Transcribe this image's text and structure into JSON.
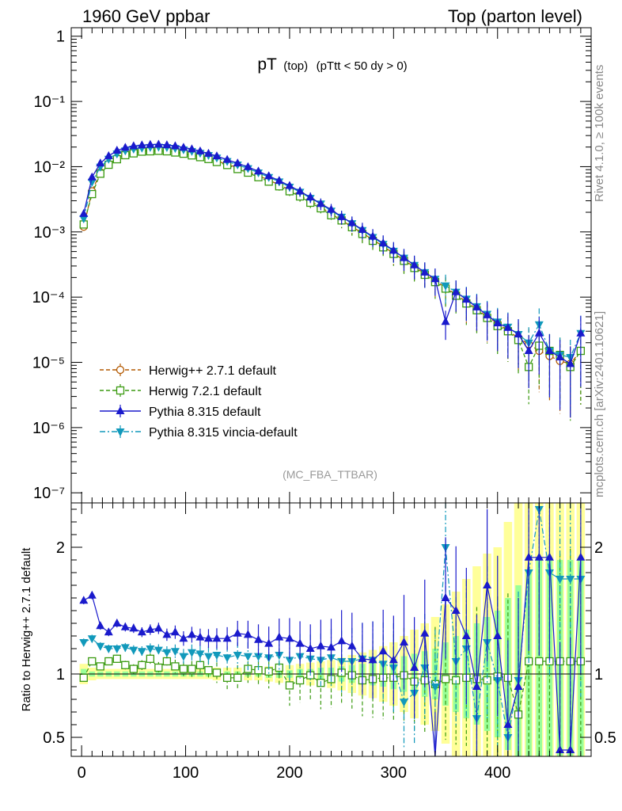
{
  "header": {
    "left": "1960 GeV ppbar",
    "right": "Top (parton level)"
  },
  "side_labels": {
    "rivet": "Rivet 4.1.0, ≥ 100k events",
    "mcplots": "mcplots.cern.ch [arXiv:2401.10621]"
  },
  "chart_data": [
    {
      "type": "line",
      "title_main": "pT",
      "title_sub": "(top)",
      "title_cut": "(pTtt < 50 dy > 0)",
      "analysis_tag": "(MC_FBA_TTBAR)",
      "xlabel": "",
      "ylabel": "",
      "yscale": "log",
      "xlim": [
        -10,
        490
      ],
      "ylim": [
        7e-08,
        1.35
      ],
      "y_tick_labels": [
        "1",
        "10⁻¹",
        "10⁻²",
        "10⁻³",
        "10⁻⁴",
        "10⁻⁵",
        "10⁻⁶",
        "10⁻⁷"
      ],
      "y_tick_values": [
        1,
        0.1,
        0.01,
        0.001,
        0.0001,
        1e-05,
        1e-06,
        1e-07
      ],
      "legend": [
        {
          "label": "Herwig++ 2.7.1 default",
          "color": "#b35900",
          "marker": "open-circle",
          "dash": "dashed"
        },
        {
          "label": "Herwig 7.2.1 default",
          "color": "#3a9a10",
          "marker": "open-square",
          "dash": "dashed"
        },
        {
          "label": "Pythia 8.315 default",
          "color": "#1a1acc",
          "marker": "filled-triangle-up",
          "dash": "solid"
        },
        {
          "label": "Pythia 8.315 vincia-default",
          "color": "#1199bb",
          "marker": "filled-triangle-down",
          "dash": "dashdot"
        }
      ],
      "x": [
        2,
        10,
        18,
        26,
        34,
        42,
        50,
        58,
        66,
        74,
        82,
        90,
        98,
        106,
        114,
        122,
        130,
        140,
        150,
        160,
        170,
        180,
        190,
        200,
        210,
        220,
        230,
        240,
        250,
        260,
        270,
        280,
        290,
        300,
        310,
        320,
        330,
        340,
        350,
        360,
        370,
        380,
        390,
        400,
        410,
        420,
        430,
        440,
        450,
        460,
        470,
        480
      ],
      "series": [
        {
          "name": "Herwig++ 2.7.1 default",
          "values": [
            0.0012,
            0.0042,
            0.0082,
            0.011,
            0.0135,
            0.0152,
            0.0163,
            0.0172,
            0.0176,
            0.0177,
            0.0175,
            0.0169,
            0.0162,
            0.0153,
            0.0143,
            0.0133,
            0.0122,
            0.0109,
            0.0096,
            0.0084,
            0.0073,
            0.0062,
            0.0053,
            0.0044,
            0.0036,
            0.003,
            0.0024,
            0.0019,
            0.0015,
            0.0012,
            0.00096,
            0.00076,
            0.0006,
            0.00047,
            0.00037,
            0.00029,
            0.00023,
            0.00018,
            0.00014,
            0.00011,
            8.5e-05,
            6.5e-05,
            5e-05,
            4e-05,
            3e-05,
            2.4e-05,
            1.9e-05,
            1.5e-05,
            1.25e-05,
            1.05e-05,
            9.5e-06,
            1.5e-05
          ]
        },
        {
          "name": "Herwig 7.2.1 default",
          "values": [
            0.0013,
            0.0038,
            0.0078,
            0.0107,
            0.013,
            0.015,
            0.016,
            0.017,
            0.0172,
            0.0175,
            0.0172,
            0.0165,
            0.0158,
            0.0149,
            0.014,
            0.0131,
            0.0118,
            0.0106,
            0.0092,
            0.0081,
            0.0069,
            0.0059,
            0.005,
            0.0042,
            0.0035,
            0.0028,
            0.0023,
            0.0018,
            0.0015,
            0.00118,
            0.00093,
            0.00073,
            0.00058,
            0.00046,
            0.00036,
            0.00028,
            0.00022,
            0.00017,
            0.000135,
            0.000105,
            8e-05,
            6.3e-05,
            4.8e-05,
            3.6e-05,
            3e-05,
            2.2e-05,
            8.5e-06,
            1.8e-05,
            1.5e-05,
            1.3e-05,
            8.5e-06,
            1.5e-05
          ]
        },
        {
          "name": "Pythia 8.315 default",
          "values": [
            0.0019,
            0.0069,
            0.0113,
            0.0146,
            0.0177,
            0.0196,
            0.0207,
            0.0214,
            0.0218,
            0.0219,
            0.0215,
            0.0207,
            0.0197,
            0.0186,
            0.0173,
            0.0159,
            0.0145,
            0.0128,
            0.0113,
            0.0099,
            0.0085,
            0.0072,
            0.0061,
            0.0051,
            0.0042,
            0.0034,
            0.0027,
            0.0022,
            0.0017,
            0.00137,
            0.00108,
            0.00085,
            0.00067,
            0.00052,
            0.0004,
            0.00031,
            0.00024,
            0.00019,
            4.2e-05,
            0.00012,
            9.2e-05,
            7e-05,
            5.3e-05,
            4e-05,
            3.4e-05,
            2.7e-05,
            1.5e-05,
            2.8e-05,
            1.5e-05,
            1.2e-05,
            9.5e-06,
            2.8e-05
          ]
        },
        {
          "name": "Pythia 8.315 vincia-default",
          "values": [
            0.0016,
            0.0058,
            0.0099,
            0.0131,
            0.0158,
            0.0176,
            0.0187,
            0.0194,
            0.0199,
            0.0201,
            0.0198,
            0.0192,
            0.0183,
            0.0173,
            0.0162,
            0.015,
            0.0137,
            0.0121,
            0.0107,
            0.0094,
            0.0081,
            0.0069,
            0.0059,
            0.0049,
            0.0041,
            0.0033,
            0.0027,
            0.0021,
            0.0017,
            0.00135,
            0.00106,
            0.00083,
            0.00065,
            0.00051,
            0.0004,
            0.00031,
            0.00024,
            0.00019,
            0.00015,
            0.00012,
            9.4e-05,
            7.2e-05,
            5.5e-05,
            4.2e-05,
            3.5e-05,
            2.7e-05,
            2e-05,
            3.8e-05,
            1.5e-05,
            1.3e-05,
            1.2e-05,
            2.8e-05
          ]
        }
      ]
    },
    {
      "type": "line",
      "ylabel": "Ratio to Herwig++ 2.7.1 default",
      "xlabel": "",
      "xlim": [
        -10,
        490
      ],
      "ylim": [
        0.35,
        2.35
      ],
      "x_tick_labels": [
        "0",
        "100",
        "200",
        "300",
        "400"
      ],
      "x_tick_values": [
        0,
        100,
        200,
        300,
        400
      ],
      "y_tick_labels": [
        "0.5",
        "1",
        "2"
      ],
      "y_tick_values": [
        0.5,
        1,
        2
      ],
      "x": [
        2,
        10,
        18,
        26,
        34,
        42,
        50,
        58,
        66,
        74,
        82,
        90,
        98,
        106,
        114,
        122,
        130,
        140,
        150,
        160,
        170,
        180,
        190,
        200,
        210,
        220,
        230,
        240,
        250,
        260,
        270,
        280,
        290,
        300,
        310,
        320,
        330,
        340,
        350,
        360,
        370,
        380,
        390,
        400,
        410,
        420,
        430,
        440,
        450,
        460,
        470,
        480
      ],
      "band_inner": [
        0.04,
        0.02,
        0.02,
        0.02,
        0.02,
        0.02,
        0.02,
        0.02,
        0.02,
        0.02,
        0.02,
        0.02,
        0.02,
        0.02,
        0.02,
        0.02,
        0.02,
        0.02,
        0.02,
        0.02,
        0.02,
        0.03,
        0.03,
        0.03,
        0.04,
        0.04,
        0.05,
        0.05,
        0.06,
        0.07,
        0.08,
        0.09,
        0.1,
        0.12,
        0.14,
        0.16,
        0.18,
        0.2,
        0.25,
        0.3,
        0.35,
        0.4,
        0.45,
        0.5,
        0.6,
        0.7,
        0.8,
        0.9,
        0.9,
        0.9,
        0.9,
        0.9
      ],
      "band_outer": [
        0.08,
        0.05,
        0.04,
        0.04,
        0.04,
        0.04,
        0.04,
        0.04,
        0.04,
        0.04,
        0.04,
        0.04,
        0.04,
        0.04,
        0.04,
        0.04,
        0.05,
        0.05,
        0.05,
        0.05,
        0.05,
        0.06,
        0.07,
        0.07,
        0.08,
        0.09,
        0.1,
        0.11,
        0.13,
        0.15,
        0.17,
        0.19,
        0.22,
        0.25,
        0.3,
        0.35,
        0.4,
        0.45,
        0.55,
        0.65,
        0.75,
        0.85,
        0.95,
        1.0,
        1.2,
        1.4,
        1.5,
        1.5,
        1.5,
        1.5,
        1.5,
        1.5
      ],
      "series": [
        {
          "name": "Herwig 7.2.1 default",
          "values": [
            0.97,
            1.1,
            1.06,
            1.1,
            1.12,
            1.07,
            1.04,
            1.07,
            1.12,
            1.05,
            1.1,
            1.06,
            1.04,
            1.04,
            1.07,
            1.03,
            1.01,
            0.97,
            0.97,
            1.04,
            1.03,
            1.02,
            1.05,
            0.91,
            0.95,
            0.99,
            0.93,
            0.96,
            1.01,
            0.99,
            0.95,
            0.96,
            0.97,
            0.97,
            0.99,
            0.94,
            0.95,
            0.92,
            0.96,
            0.95,
            0.97,
            0.96,
            0.95,
            0.98,
            0.97,
            0.68,
            1.1,
            1.1,
            1.1,
            1.1,
            1.1,
            1.1
          ]
        },
        {
          "name": "Pythia 8.315 default",
          "values": [
            1.58,
            1.62,
            1.38,
            1.33,
            1.4,
            1.37,
            1.36,
            1.33,
            1.35,
            1.36,
            1.31,
            1.33,
            1.28,
            1.31,
            1.29,
            1.28,
            1.28,
            1.28,
            1.32,
            1.31,
            1.27,
            1.24,
            1.29,
            1.28,
            1.24,
            1.2,
            1.22,
            1.21,
            1.26,
            1.22,
            1.12,
            1.11,
            1.18,
            1.11,
            1.25,
            1.05,
            1.32,
            0.25,
            1.6,
            1.5,
            1.3,
            0.9,
            1.7,
            1.3,
            0.6,
            0.9,
            1.92,
            1.92,
            1.92,
            0.4,
            0.4,
            1.92
          ]
        },
        {
          "name": "Pythia 8.315 vincia-default",
          "values": [
            1.25,
            1.28,
            1.22,
            1.2,
            1.2,
            1.21,
            1.19,
            1.18,
            1.2,
            1.19,
            1.17,
            1.18,
            1.14,
            1.17,
            1.16,
            1.14,
            1.15,
            1.13,
            1.15,
            1.14,
            1.14,
            1.13,
            1.15,
            1.11,
            1.14,
            1.12,
            1.11,
            1.13,
            1.1,
            1.1,
            1.12,
            1.11,
            1.08,
            1.05,
            0.78,
            0.85,
            1.05,
            0.9,
            2.0,
            1.1,
            1.2,
            0.65,
            1.25,
            0.95,
            0.5,
            0.95,
            1.8,
            2.3,
            1.8,
            1.75,
            1.75,
            1.75
          ]
        }
      ]
    }
  ]
}
